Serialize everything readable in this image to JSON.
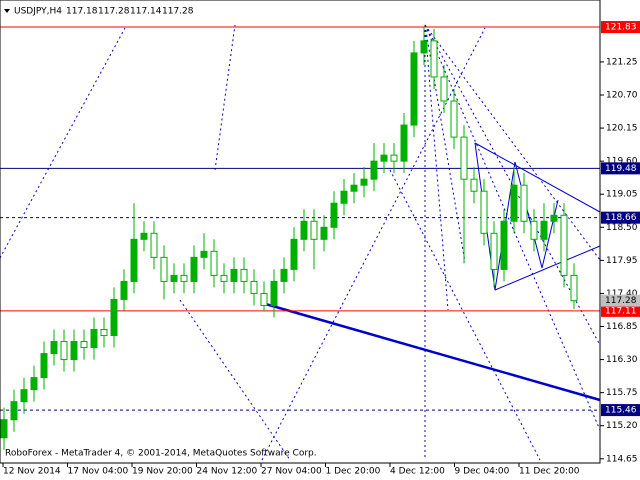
{
  "chart_data": {
    "type": "candlestick",
    "symbol": "USDJPY,H4",
    "ohlc": [
      117.18,
      117.28,
      117.14,
      117.28
    ],
    "footer": "RoboForex - MetaTrader 4, © 2001-2014, MetaQuotes Software Corp.",
    "x_labels": [
      "12 Nov 2014",
      "17 Nov 04:00",
      "19 Nov 20:00",
      "24 Nov 12:00",
      "27 Nov 04:00",
      "1 Dec 20:00",
      "4 Dec 12:00",
      "9 Dec 04:00",
      "11 Dec 20:00"
    ],
    "open": [
      115.0,
      115.3,
      115.6,
      115.8,
      116.0,
      116.4,
      116.6,
      116.3,
      116.6,
      116.5,
      116.8,
      116.7,
      117.3,
      117.6,
      118.3,
      118.4,
      118.0,
      117.6,
      117.7,
      117.6,
      118.0,
      118.1,
      117.7,
      117.6,
      117.8,
      117.6,
      117.4,
      117.2,
      117.6,
      117.8,
      118.3,
      118.6,
      118.3,
      118.5,
      118.9,
      119.1,
      119.2,
      119.3,
      119.6,
      119.7,
      119.6,
      120.2,
      121.4,
      121.6,
      121.0,
      120.6,
      120.0,
      119.3,
      119.1,
      118.4,
      117.8,
      118.6,
      119.2,
      118.6,
      118.3,
      118.6,
      118.7,
      117.7
    ],
    "high": [
      115.5,
      115.8,
      116.0,
      116.2,
      116.6,
      116.8,
      116.8,
      116.8,
      116.8,
      117.0,
      117.0,
      117.5,
      117.8,
      118.9,
      118.6,
      118.6,
      118.2,
      117.9,
      117.9,
      118.2,
      118.4,
      118.3,
      117.9,
      118.0,
      118.0,
      117.8,
      117.6,
      117.8,
      118.0,
      118.5,
      118.8,
      118.8,
      118.7,
      119.1,
      119.3,
      119.4,
      119.5,
      119.9,
      119.9,
      119.9,
      120.4,
      121.6,
      121.84,
      121.8,
      121.2,
      120.8,
      120.2,
      119.5,
      119.3,
      118.6,
      118.8,
      119.5,
      119.4,
      118.8,
      118.9,
      118.9,
      118.9,
      117.9
    ],
    "low": [
      114.8,
      115.1,
      115.4,
      115.6,
      115.8,
      116.2,
      116.1,
      116.1,
      116.3,
      116.3,
      116.5,
      116.5,
      117.1,
      117.4,
      118.1,
      117.8,
      117.3,
      117.4,
      117.4,
      117.4,
      117.8,
      117.5,
      117.4,
      117.4,
      117.4,
      117.2,
      117.1,
      117.0,
      117.4,
      117.6,
      118.1,
      117.8,
      118.1,
      118.3,
      118.7,
      118.9,
      119.0,
      119.1,
      119.4,
      119.4,
      119.4,
      120.0,
      121.2,
      120.8,
      120.4,
      119.8,
      117.9,
      118.9,
      118.2,
      117.5,
      117.6,
      118.4,
      118.4,
      118.1,
      118.1,
      118.4,
      117.5,
      117.14
    ],
    "close": [
      115.3,
      115.6,
      115.8,
      116.0,
      116.4,
      116.6,
      116.3,
      116.6,
      116.5,
      116.8,
      116.7,
      117.3,
      117.6,
      118.3,
      118.4,
      118.0,
      117.6,
      117.7,
      117.6,
      118.0,
      118.1,
      117.7,
      117.6,
      117.8,
      117.6,
      117.4,
      117.2,
      117.6,
      117.8,
      118.3,
      118.6,
      118.3,
      118.5,
      118.9,
      119.1,
      119.2,
      119.3,
      119.6,
      119.7,
      119.6,
      120.2,
      121.4,
      121.6,
      121.0,
      120.6,
      120.0,
      119.3,
      119.1,
      118.4,
      117.8,
      118.6,
      119.2,
      118.6,
      118.3,
      118.6,
      118.7,
      117.7,
      117.28
    ],
    "bull_color": "#00b000",
    "bear_color": "#ffffff",
    "wick_color": "#00b000",
    "ylim": [
      114.58,
      122.28
    ],
    "yticks": [
      {
        "value": 121.25,
        "label": "121.25"
      },
      {
        "value": 120.7,
        "label": "120.70"
      },
      {
        "value": 120.15,
        "label": "120.15"
      },
      {
        "value": 119.6,
        "label": "119.60"
      },
      {
        "value": 119.05,
        "label": "119.05"
      },
      {
        "value": 118.5,
        "label": "118.50"
      },
      {
        "value": 117.95,
        "label": "117.95"
      },
      {
        "value": 117.4,
        "label": "117.40"
      },
      {
        "value": 116.85,
        "label": "116.85"
      },
      {
        "value": 116.3,
        "label": "116.30"
      },
      {
        "value": 115.75,
        "label": "115.75"
      },
      {
        "value": 115.2,
        "label": "115.20"
      },
      {
        "value": 114.65,
        "label": "114.65"
      }
    ],
    "levels": [
      {
        "value": 121.83,
        "color": "#ff0000",
        "style": "solid"
      },
      {
        "value": 119.48,
        "color": "#000080",
        "style": "solid"
      },
      {
        "value": 118.66,
        "color": "#000080",
        "style": "dashed"
      },
      {
        "value": 117.11,
        "color": "#ff0000",
        "style": "solid"
      },
      {
        "value": 115.46,
        "color": "#000080",
        "style": "dashed"
      }
    ],
    "last_price": 117.28
  }
}
